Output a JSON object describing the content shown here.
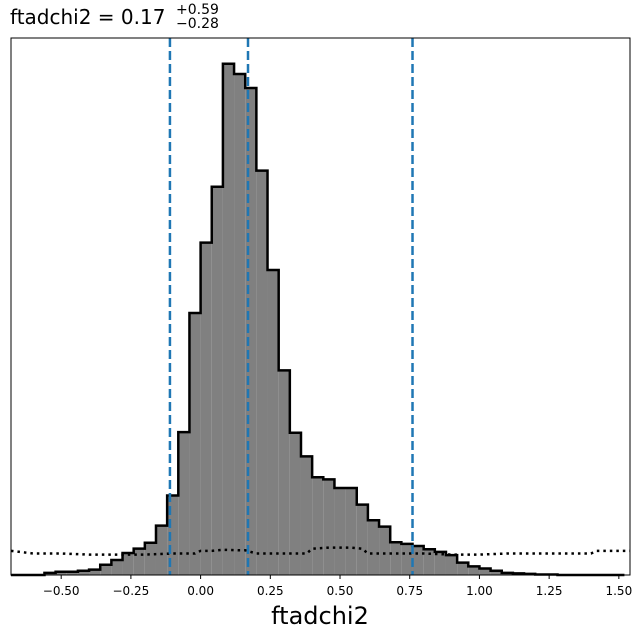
{
  "chart_data": {
    "type": "bar",
    "title": {
      "name": "ftadchi2",
      "equals": " = ",
      "value": "0.17",
      "upper": "+0.59",
      "lower": "−0.28"
    },
    "xlabel": "ftadchi2",
    "ylabel": "",
    "xlim": [
      -0.68,
      1.54
    ],
    "ylim": [
      0,
      1.0
    ],
    "x_ticks": [
      -0.5,
      -0.25,
      0.0,
      0.25,
      0.5,
      0.75,
      1.0,
      1.25,
      1.5
    ],
    "x_tick_labels": [
      "−0.50",
      "−0.25",
      "0.00",
      "0.25",
      "0.50",
      "0.75",
      "1.00",
      "1.25",
      "1.50"
    ],
    "y_ticks_shown": false,
    "grid": false,
    "histogram": {
      "bin_edges": [
        -0.68,
        -0.64,
        -0.6,
        -0.56,
        -0.52,
        -0.48,
        -0.44,
        -0.4,
        -0.36,
        -0.32,
        -0.28,
        -0.24,
        -0.2,
        -0.16,
        -0.12,
        -0.08,
        -0.04,
        0.0,
        0.04,
        0.08,
        0.12,
        0.16,
        0.2,
        0.24,
        0.28,
        0.32,
        0.36,
        0.4,
        0.44,
        0.48,
        0.52,
        0.56,
        0.6,
        0.64,
        0.68,
        0.72,
        0.76,
        0.8,
        0.84,
        0.88,
        0.92,
        0.96,
        1.0,
        1.04,
        1.08,
        1.12,
        1.16,
        1.2,
        1.24,
        1.28,
        1.32,
        1.36,
        1.4,
        1.44,
        1.48,
        1.52
      ],
      "counts": [
        0.0,
        0.0,
        0.0,
        0.004,
        0.006,
        0.006,
        0.008,
        0.01,
        0.019,
        0.028,
        0.041,
        0.049,
        0.06,
        0.092,
        0.148,
        0.266,
        0.488,
        0.619,
        0.723,
        0.952,
        0.933,
        0.907,
        0.753,
        0.568,
        0.381,
        0.265,
        0.221,
        0.182,
        0.178,
        0.162,
        0.162,
        0.131,
        0.102,
        0.09,
        0.061,
        0.058,
        0.054,
        0.048,
        0.043,
        0.037,
        0.023,
        0.016,
        0.012,
        0.008,
        0.004,
        0.003,
        0.002,
        0.001,
        0.001,
        0.0,
        0.0,
        0.0,
        0.0,
        0.0,
        0.0
      ],
      "fill_color": "#808080",
      "edge_color": "#000000"
    },
    "quantile_lines": {
      "values": [
        -0.11,
        0.17,
        0.76
      ],
      "color": "#1f77b4",
      "style": "dashed"
    },
    "prior_curve": {
      "x": [
        -0.68,
        -0.6,
        -0.5,
        -0.4,
        -0.3,
        -0.2,
        -0.1,
        -0.02,
        0.0,
        0.04,
        0.08,
        0.14,
        0.16,
        0.2,
        0.3,
        0.38,
        0.4,
        0.46,
        0.54,
        0.58,
        0.6,
        0.7,
        0.8,
        0.9,
        1.0,
        1.1,
        1.2,
        1.3,
        1.4,
        1.42,
        1.54
      ],
      "y": [
        0.045,
        0.04,
        0.04,
        0.038,
        0.038,
        0.038,
        0.04,
        0.04,
        0.045,
        0.045,
        0.047,
        0.046,
        0.046,
        0.04,
        0.04,
        0.04,
        0.049,
        0.051,
        0.051,
        0.049,
        0.04,
        0.04,
        0.04,
        0.038,
        0.038,
        0.04,
        0.04,
        0.04,
        0.04,
        0.045,
        0.045
      ],
      "color": "#000000",
      "style": "dotted"
    }
  }
}
